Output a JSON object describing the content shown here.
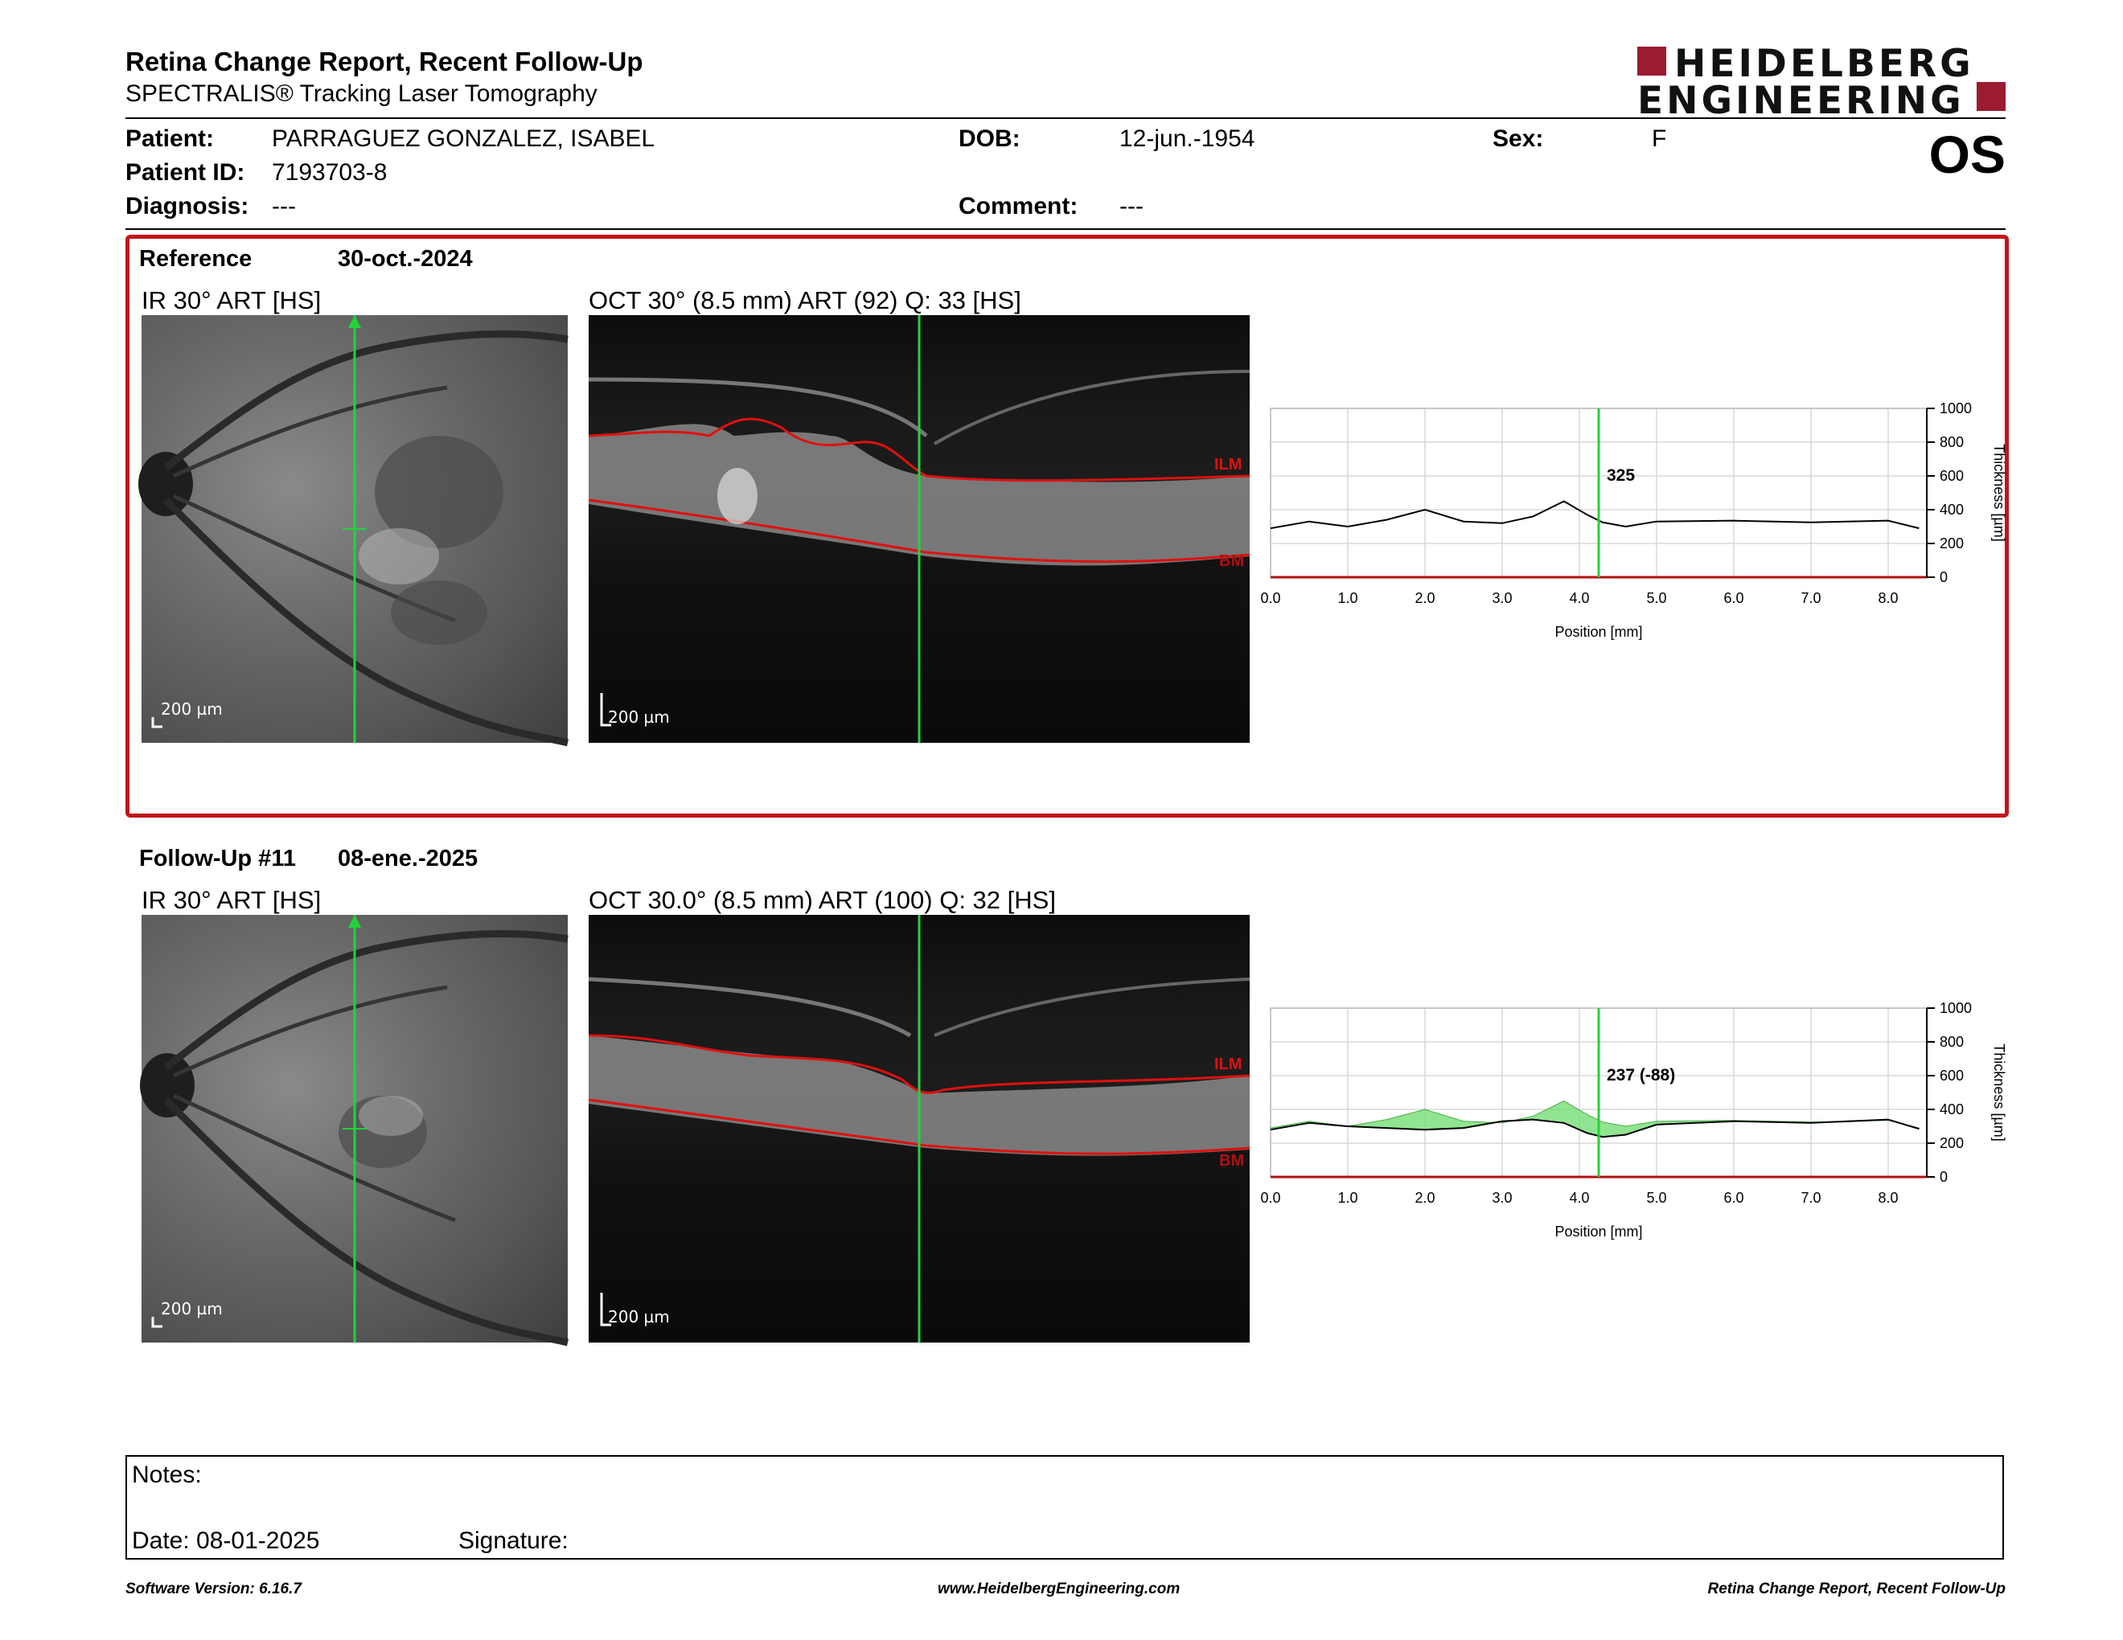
{
  "header": {
    "title": "Retina Change Report, Recent Follow-Up",
    "subtitle": "SPECTRALIS® Tracking Laser Tomography",
    "logo_line1": "HEIDELBERG",
    "logo_line2": "ENGINEERING",
    "eye": "OS"
  },
  "patient": {
    "patient_label": "Patient:",
    "patient_value": "PARRAGUEZ GONZALEZ, ISABEL",
    "id_label": "Patient ID:",
    "id_value": "7193703-8",
    "diagnosis_label": "Diagnosis:",
    "diagnosis_value": "---",
    "dob_label": "DOB:",
    "dob_value": "12-jun.-1954",
    "comment_label": "Comment:",
    "comment_value": "---",
    "sex_label": "Sex:",
    "sex_value": "F"
  },
  "reference": {
    "label": "Reference",
    "date": "30-oct.-2024",
    "ir_label": "IR 30° ART [HS]",
    "oct_label": "OCT 30° (8.5 mm) ART (92) Q: 33 [HS]",
    "ir_scale": "200 µm",
    "oct_scale": "200 µm",
    "ilm_label": "ILM",
    "bm_label": "BM",
    "value_label": "325"
  },
  "followup": {
    "label": "Follow-Up #11",
    "date": "08-ene.-2025",
    "ir_label": "IR 30° ART [HS]",
    "oct_label": "OCT 30.0° (8.5 mm) ART (100) Q: 32 [HS]",
    "ir_scale": "200 µm",
    "oct_scale": "200 µm",
    "ilm_label": "ILM",
    "bm_label": "BM",
    "value_label": "237 (-88)"
  },
  "chart_data": [
    {
      "type": "line",
      "xlabel": "Position [mm]",
      "ylabel": "Thickness [µm]",
      "xlim": [
        0,
        8.5
      ],
      "ylim": [
        0,
        1000
      ],
      "xticks": [
        "0.0",
        "1.0",
        "2.0",
        "3.0",
        "4.0",
        "5.0",
        "6.0",
        "7.0",
        "8.0"
      ],
      "yticks": [
        "0",
        "200",
        "400",
        "600",
        "800",
        "1000"
      ],
      "marker_x": 4.25,
      "marker_label": "325",
      "series": [
        {
          "x": [
            0,
            0.5,
            1.0,
            1.5,
            2.0,
            2.5,
            3.0,
            3.4,
            3.8,
            4.1,
            4.3,
            4.6,
            5.0,
            6.0,
            7.0,
            8.0,
            8.4
          ],
          "values": [
            290,
            330,
            300,
            340,
            400,
            330,
            320,
            360,
            450,
            370,
            325,
            300,
            330,
            335,
            325,
            335,
            290
          ]
        }
      ]
    },
    {
      "type": "area",
      "xlabel": "Position [mm]",
      "ylabel": "Thickness [µm]",
      "xlim": [
        0,
        8.5
      ],
      "ylim": [
        0,
        1000
      ],
      "xticks": [
        "0.0",
        "1.0",
        "2.0",
        "3.0",
        "4.0",
        "5.0",
        "6.0",
        "7.0",
        "8.0"
      ],
      "yticks": [
        "0",
        "200",
        "400",
        "600",
        "800",
        "1000"
      ],
      "marker_x": 4.25,
      "marker_label": "237 (-88)",
      "series": [
        {
          "x": [
            0,
            0.5,
            1.0,
            1.5,
            2.0,
            2.5,
            3.0,
            3.4,
            3.8,
            4.1,
            4.3,
            4.6,
            5.0,
            6.0,
            7.0,
            8.0,
            8.4
          ],
          "values": [
            290,
            330,
            300,
            340,
            400,
            330,
            320,
            360,
            450,
            370,
            325,
            300,
            330,
            335,
            325,
            335,
            290
          ]
        },
        {
          "x": [
            0,
            0.5,
            1.0,
            1.5,
            2.0,
            2.5,
            3.0,
            3.4,
            3.8,
            4.1,
            4.3,
            4.6,
            5.0,
            6.0,
            7.0,
            8.0,
            8.4
          ],
          "values": [
            280,
            320,
            300,
            290,
            280,
            290,
            330,
            340,
            320,
            260,
            237,
            250,
            310,
            330,
            320,
            340,
            285
          ]
        }
      ]
    }
  ],
  "notes": {
    "notes_label": "Notes:",
    "date_label": "Date: 08-01-2025",
    "signature_label": "Signature:"
  },
  "footer": {
    "left": "Software Version: 6.16.7",
    "center": "www.HeidelbergEngineering.com",
    "right": "Retina Change Report, Recent Follow-Up"
  }
}
